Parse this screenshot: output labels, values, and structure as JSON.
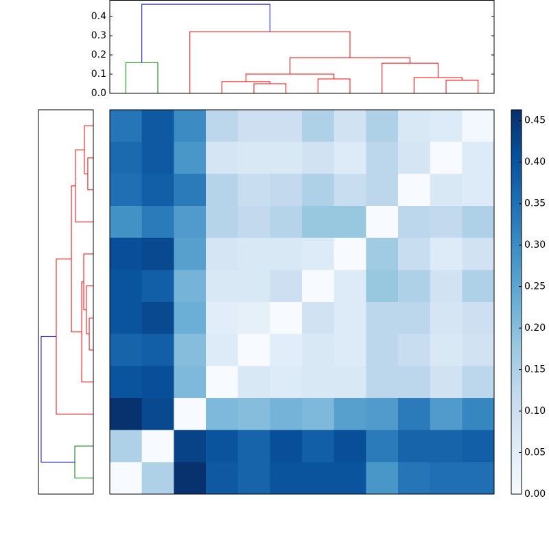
{
  "chart_data": {
    "type": "heatmap",
    "colormap": "Blues",
    "values": [
      [
        0.34,
        0.39,
        0.3,
        0.13,
        0.1,
        0.1,
        0.15,
        0.09,
        0.15,
        0.07,
        0.06,
        0.01
      ],
      [
        0.36,
        0.39,
        0.28,
        0.08,
        0.07,
        0.07,
        0.09,
        0.06,
        0.13,
        0.08,
        0.0,
        0.06
      ],
      [
        0.35,
        0.38,
        0.33,
        0.14,
        0.11,
        0.12,
        0.15,
        0.11,
        0.13,
        0.0,
        0.07,
        0.06
      ],
      [
        0.29,
        0.33,
        0.27,
        0.14,
        0.12,
        0.14,
        0.18,
        0.18,
        0.0,
        0.13,
        0.12,
        0.15
      ],
      [
        0.41,
        0.42,
        0.26,
        0.08,
        0.07,
        0.07,
        0.06,
        0.0,
        0.17,
        0.11,
        0.06,
        0.09
      ],
      [
        0.4,
        0.38,
        0.22,
        0.07,
        0.07,
        0.1,
        0.0,
        0.06,
        0.18,
        0.15,
        0.09,
        0.15
      ],
      [
        0.4,
        0.42,
        0.23,
        0.05,
        0.04,
        0.0,
        0.09,
        0.06,
        0.13,
        0.13,
        0.08,
        0.1
      ],
      [
        0.37,
        0.38,
        0.2,
        0.06,
        0.0,
        0.05,
        0.07,
        0.06,
        0.13,
        0.11,
        0.07,
        0.09
      ],
      [
        0.4,
        0.41,
        0.21,
        0.0,
        0.07,
        0.06,
        0.07,
        0.07,
        0.13,
        0.13,
        0.09,
        0.13
      ],
      [
        0.46,
        0.42,
        0.0,
        0.21,
        0.2,
        0.22,
        0.21,
        0.26,
        0.27,
        0.33,
        0.27,
        0.31
      ],
      [
        0.15,
        0.0,
        0.43,
        0.4,
        0.37,
        0.41,
        0.38,
        0.41,
        0.33,
        0.37,
        0.37,
        0.38
      ],
      [
        0.0,
        0.15,
        0.46,
        0.39,
        0.37,
        0.4,
        0.4,
        0.4,
        0.28,
        0.34,
        0.35,
        0.35
      ]
    ],
    "vlim": [
      0,
      0.463
    ],
    "cticks": [
      {
        "value": 0,
        "label": "0.00"
      },
      {
        "value": 0.05,
        "label": "0.05"
      },
      {
        "value": 0.1,
        "label": "0.10"
      },
      {
        "value": 0.15,
        "label": "0.15"
      },
      {
        "value": 0.2,
        "label": "0.20"
      },
      {
        "value": 0.25,
        "label": "0.25"
      },
      {
        "value": 0.3,
        "label": "0.30"
      },
      {
        "value": 0.35,
        "label": "0.35"
      },
      {
        "value": 0.4,
        "label": "0.40"
      },
      {
        "value": 0.45,
        "label": "0.45"
      }
    ],
    "top_dendrogram": {
      "ylim": [
        0,
        0.486
      ],
      "yticks": [
        {
          "value": 0,
          "label": "0.0"
        },
        {
          "value": 0.1,
          "label": "0.1"
        },
        {
          "value": 0.2,
          "label": "0.2"
        },
        {
          "value": 0.3,
          "label": "0.3"
        },
        {
          "value": 0.4,
          "label": "0.4"
        }
      ],
      "links": [
        {
          "icoord": [
            5,
            5,
            15,
            15
          ],
          "dcoord": [
            0,
            0.16,
            0.16,
            0
          ],
          "color": "#008000"
        },
        {
          "icoord": [
            45,
            45,
            55,
            55
          ],
          "dcoord": [
            0,
            0.05,
            0.05,
            0
          ],
          "color": "#ff0000"
        },
        {
          "icoord": [
            35,
            35,
            50,
            50
          ],
          "dcoord": [
            0,
            0.061,
            0.061,
            0.05
          ],
          "color": "#ff0000"
        },
        {
          "icoord": [
            65,
            65,
            75,
            75
          ],
          "dcoord": [
            0,
            0.075,
            0.075,
            0
          ],
          "color": "#ff0000"
        },
        {
          "icoord": [
            42.5,
            42.5,
            70,
            70
          ],
          "dcoord": [
            0.061,
            0.1,
            0.1,
            0.075
          ],
          "color": "#ff0000"
        },
        {
          "icoord": [
            105,
            105,
            115,
            115
          ],
          "dcoord": [
            0,
            0.068,
            0.068,
            0
          ],
          "color": "#ff0000"
        },
        {
          "icoord": [
            95,
            95,
            110,
            110
          ],
          "dcoord": [
            0,
            0.082,
            0.082,
            0.068
          ],
          "color": "#ff0000"
        },
        {
          "icoord": [
            85,
            85,
            102.5,
            102.5
          ],
          "dcoord": [
            0,
            0.157,
            0.157,
            0.082
          ],
          "color": "#ff0000"
        },
        {
          "icoord": [
            56.25,
            56.25,
            93.75,
            93.75
          ],
          "dcoord": [
            0.1,
            0.186,
            0.186,
            0.157
          ],
          "color": "#ff0000"
        },
        {
          "icoord": [
            25,
            25,
            75,
            75
          ],
          "dcoord": [
            0,
            0.321,
            0.321,
            0.186
          ],
          "color": "#ff0000"
        },
        {
          "icoord": [
            10,
            10,
            50,
            50
          ],
          "dcoord": [
            0.16,
            0.464,
            0.464,
            0.321
          ],
          "color": "#0000ff"
        }
      ]
    },
    "left_dendrogram": {
      "xlim": [
        0,
        0.486
      ],
      "links": [
        {
          "icoord": [
            15,
            15,
            25,
            25
          ],
          "dcoord": [
            0,
            0.049,
            0.049,
            0
          ],
          "color": "#ff0000"
        },
        {
          "icoord": [
            5,
            5,
            20,
            20
          ],
          "dcoord": [
            0,
            0.079,
            0.079,
            0.049
          ],
          "color": "#ff0000"
        },
        {
          "icoord": [
            12.5,
            12.5,
            35,
            35
          ],
          "dcoord": [
            0.079,
            0.158,
            0.158,
            0
          ],
          "color": "#ff0000"
        },
        {
          "icoord": [
            65,
            65,
            75,
            75
          ],
          "dcoord": [
            0,
            0.036,
            0.036,
            0
          ],
          "color": "#ff0000"
        },
        {
          "icoord": [
            55,
            55,
            70,
            70
          ],
          "dcoord": [
            0,
            0.061,
            0.061,
            0.036
          ],
          "color": "#ff0000"
        },
        {
          "icoord": [
            45,
            45,
            62.5,
            62.5
          ],
          "dcoord": [
            0,
            0.085,
            0.085,
            0.061
          ],
          "color": "#ff0000"
        },
        {
          "icoord": [
            53.75,
            53.75,
            85,
            85
          ],
          "dcoord": [
            0.085,
            0.103,
            0.103,
            0
          ],
          "color": "#ff0000"
        },
        {
          "icoord": [
            23.75,
            23.75,
            69.375,
            69.375
          ],
          "dcoord": [
            0.158,
            0.194,
            0.194,
            0.103
          ],
          "color": "#ff0000"
        },
        {
          "icoord": [
            46.5625,
            46.5625,
            95,
            95
          ],
          "dcoord": [
            0.194,
            0.328,
            0.328,
            0
          ],
          "color": "#ff0000"
        },
        {
          "icoord": [
            105,
            105,
            115,
            115
          ],
          "dcoord": [
            0,
            0.164,
            0.164,
            0
          ],
          "color": "#008000"
        },
        {
          "icoord": [
            70.78125,
            70.78125,
            110,
            110
          ],
          "dcoord": [
            0.328,
            0.462,
            0.462,
            0.164
          ],
          "color": "#0000ff"
        }
      ]
    }
  }
}
